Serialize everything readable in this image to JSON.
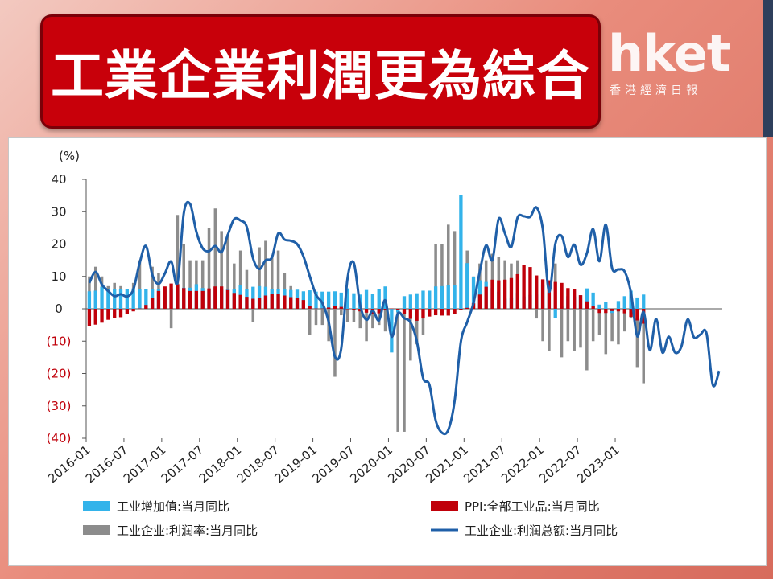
{
  "header": {
    "title": "工業企業利潤更為綜合"
  },
  "logo": {
    "main": "hket",
    "sub": "香港經濟日報"
  },
  "chart_data": {
    "type": "bar",
    "unit_label": "(%)",
    "ylim": [
      -40,
      40
    ],
    "yticks": [
      {
        "value": 40,
        "label": "40",
        "negative": false
      },
      {
        "value": 30,
        "label": "30",
        "negative": false
      },
      {
        "value": 20,
        "label": "20",
        "negative": false
      },
      {
        "value": 10,
        "label": "10",
        "negative": false
      },
      {
        "value": 0,
        "label": "0",
        "negative": false
      },
      {
        "value": -10,
        "label": "(10)",
        "negative": true
      },
      {
        "value": -20,
        "label": "(20)",
        "negative": true
      },
      {
        "value": -30,
        "label": "(30)",
        "negative": true
      },
      {
        "value": -40,
        "label": "(40)",
        "negative": true
      }
    ],
    "xtick_labels": [
      "2016-01",
      "2016-07",
      "2017-01",
      "2017-07",
      "2018-01",
      "2018-07",
      "2019-01",
      "2019-07",
      "2020-01",
      "2020-07",
      "2021-01",
      "2021-07",
      "2022-01",
      "2022-07",
      "2023-01"
    ],
    "months_per_tick": 6,
    "series": [
      {
        "name": "工业增加值:当月同比",
        "kind": "bar",
        "color": "#33b3ea",
        "values": [
          5.4,
          5.6,
          6.8,
          6.0,
          6.0,
          6.2,
          6.0,
          6.3,
          6.1,
          6.1,
          6.2,
          6.0,
          6.3,
          6.3,
          7.6,
          6.5,
          6.5,
          7.6,
          6.4,
          6.0,
          6.6,
          6.2,
          6.1,
          6.2,
          7.2,
          6.0,
          6.8,
          7.0,
          6.8,
          6.0,
          6.0,
          6.1,
          5.8,
          5.9,
          5.4,
          5.7,
          5.3,
          5.3,
          5.3,
          5.4,
          5.0,
          6.3,
          4.8,
          4.4,
          5.8,
          4.7,
          6.2,
          6.9,
          -13.5,
          -1.1,
          3.9,
          4.4,
          4.8,
          5.6,
          5.6,
          6.9,
          7.0,
          7.3,
          7.3,
          35.1,
          14.1,
          9.8,
          8.8,
          8.3,
          6.4,
          5.3,
          3.1,
          3.5,
          4.9,
          3.8,
          4.3,
          4.4,
          7.5,
          5.0,
          -2.9,
          0.7,
          3.9,
          3.8,
          4.2,
          6.3,
          5.0,
          1.3,
          2.2,
          -1.3,
          2.4,
          3.9,
          5.6,
          3.5,
          4.4
        ]
      },
      {
        "name": "PPI:全部工业品:当月同比",
        "kind": "bar",
        "color": "#c0000a",
        "values": [
          -5.3,
          -4.9,
          -4.3,
          -3.4,
          -2.8,
          -2.6,
          -1.7,
          -0.8,
          0.1,
          1.2,
          3.3,
          5.5,
          6.9,
          7.8,
          7.6,
          6.4,
          5.5,
          5.5,
          5.5,
          6.3,
          6.9,
          6.9,
          5.8,
          4.9,
          4.3,
          3.7,
          3.1,
          3.4,
          4.1,
          4.7,
          4.6,
          4.1,
          3.6,
          3.3,
          2.7,
          0.9,
          0.1,
          0.1,
          0.4,
          0.9,
          0.6,
          0.0,
          -0.3,
          -0.8,
          -1.2,
          -1.6,
          -1.4,
          -0.5,
          0.1,
          -0.4,
          -1.5,
          -3.1,
          -3.7,
          -3.0,
          -2.4,
          -2.0,
          -2.1,
          -2.1,
          -1.5,
          -0.4,
          0.3,
          1.7,
          4.4,
          6.8,
          9.0,
          8.8,
          9.0,
          9.5,
          10.7,
          13.5,
          12.9,
          10.3,
          9.1,
          8.8,
          8.3,
          8.0,
          6.4,
          6.1,
          4.2,
          2.3,
          0.9,
          -1.3,
          -1.3,
          -0.7,
          -0.8,
          -1.4,
          -2.5,
          -3.6,
          -4.6
        ]
      },
      {
        "name": "工业企业:利润率:当月同比",
        "kind": "bar",
        "color": "#8c8c8c",
        "values": [
          10,
          13,
          10,
          7,
          8,
          7,
          3,
          8,
          15,
          4,
          13,
          11,
          5,
          -6,
          29,
          20,
          15,
          15,
          15,
          25,
          31,
          24,
          23,
          14,
          18,
          12,
          -4,
          19,
          21,
          16,
          18,
          11,
          7,
          3,
          3,
          -8,
          -5,
          -5,
          -10,
          -21,
          -2,
          -4,
          -4,
          -6,
          -10,
          -6,
          -5,
          -7,
          -12,
          -38,
          -38,
          -16,
          -11,
          -8,
          3,
          20,
          20,
          26,
          24,
          26,
          18,
          10,
          14,
          15,
          17,
          16,
          15,
          14,
          15,
          13,
          9,
          -3,
          -10,
          -13,
          14,
          -15,
          -10,
          -13,
          -12,
          -19,
          -10,
          -8,
          -14,
          -10,
          -11,
          -7,
          -3,
          -18,
          -23
        ]
      },
      {
        "name": "工业企业:利润总额:当月同比",
        "kind": "line",
        "color": "#1f5fa8",
        "values": [
          8.0,
          11.4,
          7.5,
          5.5,
          3.9,
          4.5,
          3.8,
          6.0,
          14.2,
          19.4,
          10.5,
          7.7,
          10.9,
          14.6,
          8.0,
          29.5,
          32.4,
          23.8,
          18.7,
          17.8,
          19.4,
          17.5,
          22.9,
          27.7,
          27.3,
          25.3,
          15.6,
          12.3,
          15.0,
          15.9,
          23.3,
          21.4,
          21.0,
          20.0,
          16.2,
          10.1,
          4.3,
          1.8,
          -4.0,
          -14.8,
          -12.3,
          9.4,
          14.2,
          1.2,
          -3.4,
          -0.6,
          -3.6,
          2.6,
          -8.6,
          -1.4,
          -2.9,
          -4.2,
          -10.0,
          -21.4,
          -23.5,
          -34.5,
          -38.3,
          -37.4,
          -28.5,
          -10.1,
          -4.1,
          1.8,
          11.5,
          19.6,
          15.1,
          27.8,
          23.3,
          19.1,
          28.2,
          28.6,
          28.4,
          31.3,
          24.7,
          5.3,
          20.1,
          22.5,
          16.0,
          19.8,
          13.6,
          17.1,
          24.6,
          14.7,
          26.0,
          12.6,
          12.2,
          11.5,
          5.0,
          -8.5,
          -1.0,
          -12.8,
          -3.1,
          -13.5,
          -8.6,
          -13.5,
          -11.7,
          -3.3,
          -8.8,
          -8.0,
          -7.6,
          -23.5,
          -19.2
        ]
      }
    ]
  }
}
